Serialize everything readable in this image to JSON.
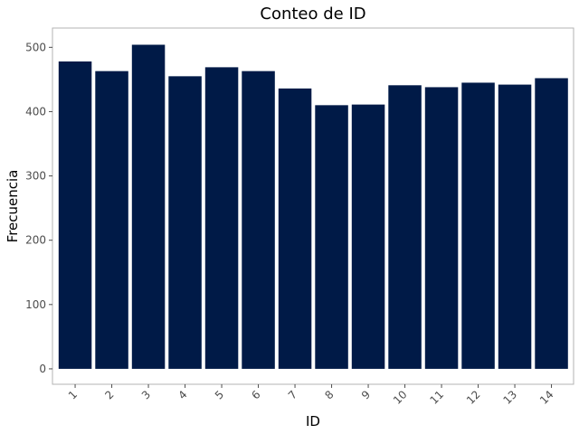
{
  "chart_data": {
    "type": "bar",
    "title": "Conteo de ID",
    "xlabel": "ID",
    "ylabel": "Frecuencia",
    "categories": [
      "1",
      "2",
      "3",
      "4",
      "5",
      "6",
      "7",
      "8",
      "9",
      "10",
      "11",
      "12",
      "13",
      "14"
    ],
    "values": [
      478,
      463,
      504,
      455,
      469,
      463,
      436,
      410,
      411,
      441,
      438,
      445,
      442,
      452
    ],
    "ylim": [
      -24,
      530
    ],
    "yticks": [
      0,
      100,
      200,
      300,
      400,
      500
    ],
    "ytick_labels": [
      "0",
      "100",
      "200",
      "300",
      "400",
      "500"
    ],
    "grid": false,
    "legend": "none",
    "colors": {
      "bar": "#001a47",
      "panel_border": "#b3b3b3",
      "tick_text": "#4d4d4d",
      "tick_mark": "#4d4d4d",
      "background": "#ffffff"
    }
  }
}
